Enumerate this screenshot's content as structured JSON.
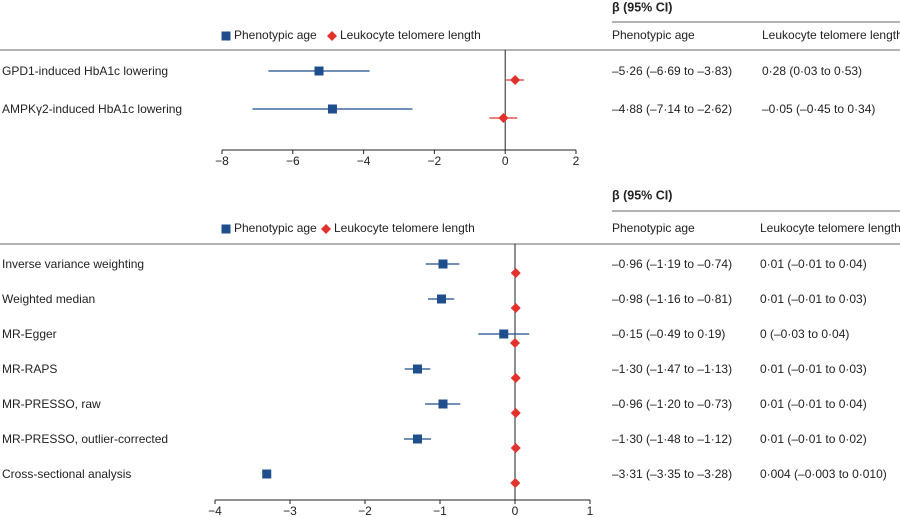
{
  "chart_data": [
    {
      "type": "forest",
      "header": "β (95% CI)",
      "categories": [
        "GPD1-induced HbA1c lowering",
        "AMPKγ2-induced HbA1c lowering"
      ],
      "series": [
        {
          "name": "Phenotypic age",
          "color": "#1f4e8c",
          "marker": "square",
          "values": [
            -5.26,
            -4.88
          ],
          "lower": [
            -6.69,
            -7.14
          ],
          "upper": [
            -3.83,
            -2.62
          ],
          "value_labels": [
            "–5·26 (–6·69 to –3·83)",
            "–4·88 (–7·14 to –2·62)"
          ]
        },
        {
          "name": "Leukocyte telomere length",
          "color": "#e2322b",
          "marker": "diamond",
          "values": [
            0.28,
            -0.05
          ],
          "lower": [
            0.03,
            -0.45
          ],
          "upper": [
            0.53,
            0.34
          ],
          "value_labels": [
            "0·28 (0·03 to 0·53)",
            "–0·05 (–0·45 to 0·34)"
          ]
        }
      ],
      "xlim": [
        -8,
        2
      ],
      "xticks": [
        {
          "value": -8,
          "label": "−8"
        },
        {
          "value": -6,
          "label": "−6"
        },
        {
          "value": -4,
          "label": "−4"
        },
        {
          "value": -2,
          "label": "−2"
        },
        0,
        2
      ]
    },
    {
      "type": "forest",
      "header": "β (95% CI)",
      "categories": [
        "Inverse variance weighting",
        "Weighted median",
        "MR-Egger",
        "MR-RAPS",
        "MR-PRESSO, raw",
        "MR-PRESSO, outlier-corrected",
        "Cross-sectional analysis"
      ],
      "series": [
        {
          "name": "Phenotypic age",
          "color": "#1f4e8c",
          "marker": "square",
          "values": [
            -0.96,
            -0.98,
            -0.15,
            -1.3,
            -0.96,
            -1.3,
            -3.31
          ],
          "lower": [
            -1.19,
            -1.16,
            -0.49,
            -1.47,
            -1.2,
            -1.48,
            -3.35
          ],
          "upper": [
            -0.74,
            -0.81,
            0.19,
            -1.13,
            -0.73,
            -1.12,
            -3.28
          ],
          "value_labels": [
            "–0·96 (–1·19 to –0·74)",
            "–0·98 (–1·16 to –0·81)",
            "–0·15 (–0·49 to 0·19)",
            "–1·30 (–1·47 to –1·13)",
            "–0·96 (–1·20 to –0·73)",
            "–1·30 (–1·48 to –1·12)",
            "–3·31 (–3·35 to –3·28)"
          ]
        },
        {
          "name": "Leukocyte telomere length",
          "color": "#e2322b",
          "marker": "diamond",
          "values": [
            0.01,
            0.01,
            0,
            0.01,
            0.01,
            0.01,
            0.004
          ],
          "lower": [
            -0.01,
            -0.01,
            -0.03,
            -0.01,
            -0.01,
            -0.01,
            -0.003
          ],
          "upper": [
            0.04,
            0.03,
            0.04,
            0.03,
            0.04,
            0.02,
            0.01
          ],
          "value_labels": [
            "0·01 (–0·01 to 0·04)",
            "0·01 (–0·01 to 0·03)",
            "0 (–0·03 to 0·04)",
            "0·01 (–0·01 to 0·03)",
            "0·01 (–0·01 to 0·04)",
            "0·01 (–0·01 to 0·02)",
            "0·004 (–0·003 to 0·010)"
          ]
        }
      ],
      "xlim": [
        -4,
        1
      ],
      "xticks": [
        {
          "value": -4,
          "label": "−4"
        },
        {
          "value": -3,
          "label": "−3"
        },
        {
          "value": -2,
          "label": "−2"
        },
        {
          "value": -1,
          "label": "−1"
        },
        0,
        1
      ]
    }
  ]
}
